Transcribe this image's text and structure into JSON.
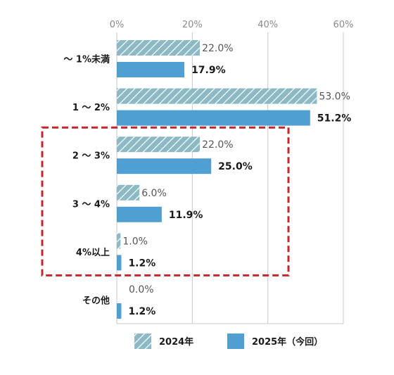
{
  "chart_data": {
    "type": "bar",
    "orientation": "horizontal",
    "categories": [
      "～ 1%未満",
      "1 ～ 2%",
      "2 ～ 3%",
      "3 ～ 4%",
      "4%以上",
      "その他"
    ],
    "series": [
      {
        "name": "2024年",
        "values": [
          22.0,
          53.0,
          22.0,
          6.0,
          1.0,
          0.0
        ],
        "labels": [
          "22.0%",
          "53.0%",
          "22.0%",
          "6.0%",
          "1.0%",
          "0.0%"
        ],
        "color": "#8db9c4",
        "pattern": "diagonal-hatch"
      },
      {
        "name": "2025年（今回）",
        "values": [
          17.9,
          51.2,
          25.0,
          11.9,
          1.2,
          1.2
        ],
        "labels": [
          "17.9%",
          "51.2%",
          "25.0%",
          "11.9%",
          "1.2%",
          "1.2%"
        ],
        "color": "#4f9fd2"
      }
    ],
    "x_ticks": [
      "0%",
      "20%",
      "40%",
      "60%"
    ],
    "x_tick_values": [
      0,
      20,
      40,
      60
    ],
    "xlim": [
      0,
      60
    ],
    "grid": true,
    "legend_position": "bottom",
    "highlight": {
      "categories": [
        "2 ～ 3%",
        "3 ～ 4%",
        "4%以上"
      ],
      "style": "dashed-box",
      "color": "#c0282d"
    }
  }
}
